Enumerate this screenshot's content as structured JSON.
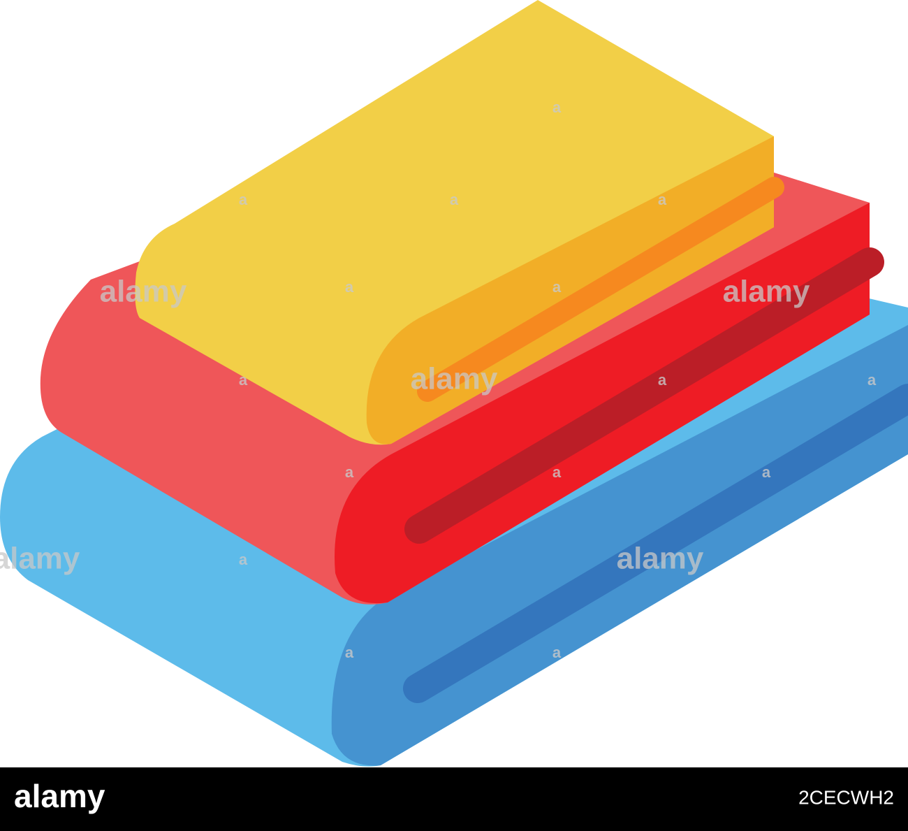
{
  "watermark": {
    "brand": "alamy",
    "mark": "a"
  },
  "footer": {
    "logo": "alamy",
    "image_id": "2CECWH2"
  }
}
